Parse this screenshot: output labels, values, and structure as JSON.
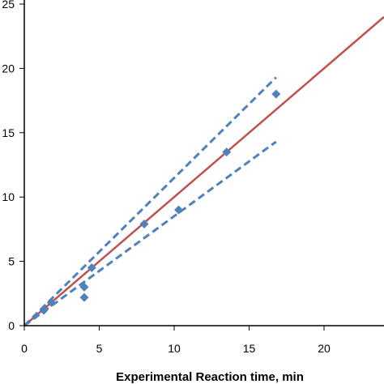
{
  "chart_data": {
    "type": "scatter",
    "title": "",
    "xlabel": "Experimental Reaction time, min",
    "ylabel": "",
    "xlim": [
      0,
      24
    ],
    "ylim": [
      0,
      25
    ],
    "x_ticks": [
      0,
      5,
      10,
      15,
      20
    ],
    "x_tick_labels": [
      "0",
      "5",
      "10",
      "15",
      "20"
    ],
    "y_ticks": [
      0,
      5,
      10,
      15,
      20,
      25
    ],
    "y_tick_labels": [
      "0",
      "5",
      "10",
      "15",
      "20",
      "25"
    ],
    "y_tick_labels_visible": [
      "0",
      "5",
      "10",
      "15",
      "20",
      "25"
    ],
    "grid": false,
    "legend": "none",
    "series": [
      {
        "type": "scatter",
        "marker": "diamond",
        "color": "#4F81BD",
        "points": [
          {
            "x": 1.3,
            "y": 1.2
          },
          {
            "x": 1.8,
            "y": 1.8
          },
          {
            "x": 4.0,
            "y": 3.0
          },
          {
            "x": 4.0,
            "y": 2.2
          },
          {
            "x": 4.5,
            "y": 4.5
          },
          {
            "x": 8.0,
            "y": 7.9
          },
          {
            "x": 10.3,
            "y": 9.0
          },
          {
            "x": 13.5,
            "y": 13.5
          },
          {
            "x": 16.8,
            "y": 18.0
          }
        ]
      },
      {
        "type": "line",
        "style": "solid",
        "color": "#C0504D",
        "points": [
          {
            "x": 0,
            "y": 0
          },
          {
            "x": 24,
            "y": 24
          }
        ]
      },
      {
        "type": "line",
        "style": "dashed",
        "color": "#4F81BD",
        "points": [
          {
            "x": 0,
            "y": 0
          },
          {
            "x": 16.8,
            "y": 19.3
          }
        ]
      },
      {
        "type": "line",
        "style": "dashed",
        "color": "#4F81BD",
        "points": [
          {
            "x": 0,
            "y": 0
          },
          {
            "x": 16.8,
            "y": 14.3
          }
        ]
      }
    ]
  }
}
